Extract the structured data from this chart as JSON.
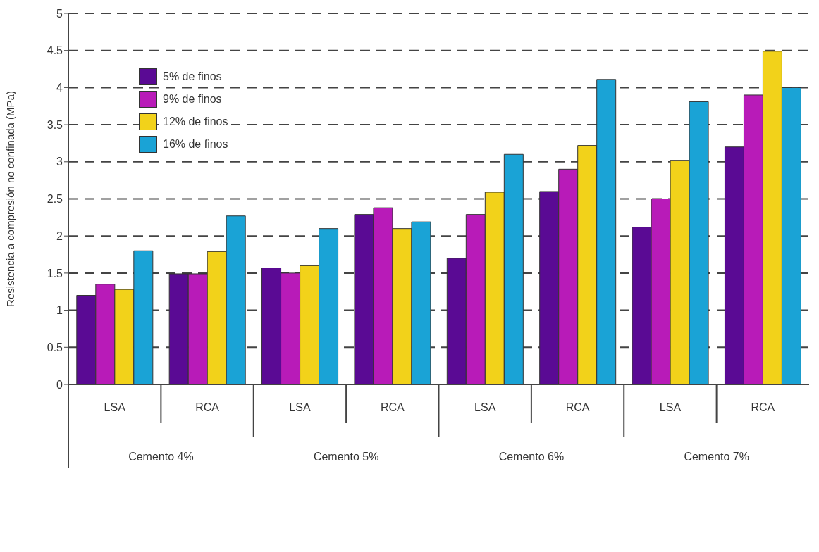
{
  "chart_data": {
    "type": "bar",
    "ylabel": "Resistencia a compresión no confinada (MPa)",
    "categories": [
      "LSA",
      "RCA",
      "LSA",
      "RCA",
      "LSA",
      "RCA",
      "LSA",
      "RCA"
    ],
    "annotations": [
      "Cemento 4%",
      "Cemento 5%",
      "Cemento 6%",
      "Cemento 7%"
    ],
    "series": [
      {
        "name": "5% de finos",
        "color": "#5a0a94",
        "values": [
          1.2,
          1.49,
          1.57,
          2.29,
          1.7,
          2.6,
          2.12,
          3.2
        ]
      },
      {
        "name": "9% de finos",
        "color": "#b81bb8",
        "values": [
          1.35,
          1.49,
          1.5,
          2.38,
          2.29,
          2.9,
          2.5,
          3.9
        ]
      },
      {
        "name": "12% de finos",
        "color": "#f2d21a",
        "values": [
          1.28,
          1.79,
          1.6,
          2.1,
          2.59,
          3.22,
          3.02,
          4.49
        ]
      },
      {
        "name": "16% de finos",
        "color": "#1aa3d6",
        "values": [
          1.8,
          2.27,
          2.1,
          2.19,
          3.1,
          4.11,
          3.81,
          4.0
        ]
      }
    ],
    "ylim": [
      0,
      5
    ],
    "yticks": [
      0,
      0.5,
      1,
      1.5,
      2,
      2.5,
      3,
      3.5,
      4,
      4.5,
      5
    ],
    "grid": "y",
    "legend": "top left"
  }
}
